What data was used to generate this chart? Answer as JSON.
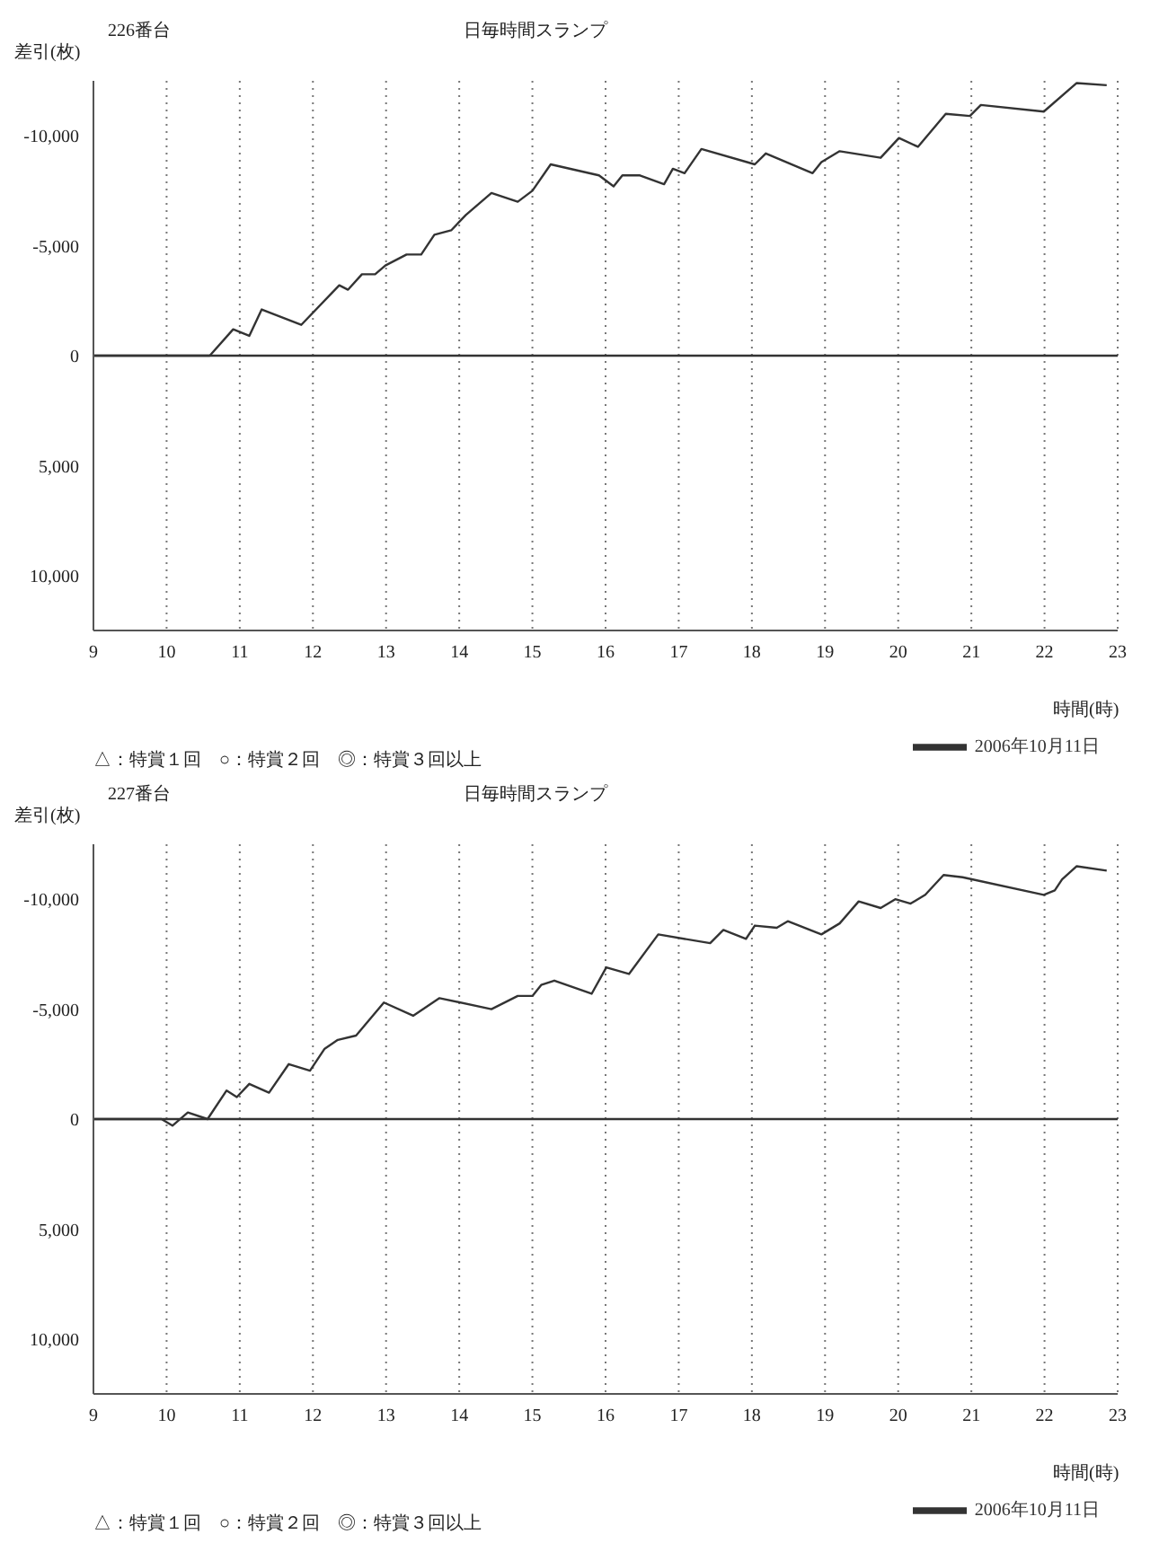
{
  "chart_data": [
    {
      "type": "line",
      "title": "226番台",
      "subtitle": "日毎時間スランプ",
      "xlabel": "時間(時)",
      "ylabel": "差引(枚)",
      "xlim": [
        9,
        23
      ],
      "xticks": [
        9,
        10,
        11,
        12,
        13,
        14,
        15,
        16,
        17,
        18,
        19,
        20,
        21,
        22,
        23
      ],
      "ylim": [
        12500,
        -12500
      ],
      "yticks": [
        {
          "value": -10000,
          "label": "-10,000"
        },
        {
          "value": -5000,
          "label": "-5,000"
        },
        0,
        {
          "value": 5000,
          "label": "5,000"
        },
        {
          "value": 10000,
          "label": "10,000"
        }
      ],
      "grid": "x",
      "legend": "bottom right",
      "marker": "none",
      "line_style": "solid",
      "ref_lines": [
        {
          "axis": "y",
          "value": 0,
          "color": "#333333",
          "line_style": "solid"
        }
      ],
      "annotations": [
        "△：特賞１回　○：特賞２回　◎：特賞３回以上"
      ],
      "x": [
        9,
        10.59,
        10.91,
        11.13,
        11.3,
        11.84,
        12.36,
        12.48,
        12.67,
        12.85,
        12.99,
        13.28,
        13.48,
        13.66,
        13.89,
        14.09,
        14.44,
        14.8,
        15.0,
        15.25,
        15.91,
        16.11,
        16.23,
        16.47,
        16.8,
        16.92,
        17.08,
        17.31,
        18.04,
        18.19,
        18.83,
        18.95,
        19.2,
        19.76,
        20.01,
        20.27,
        20.65,
        20.98,
        21.13,
        21.99,
        22.44,
        22.85
      ],
      "series": [
        {
          "name": "2006年10月11日",
          "color": "#333333",
          "values": [
            0,
            0,
            -1200,
            -900,
            -2100,
            -1400,
            -3200,
            -3000,
            -3700,
            -3700,
            -4100,
            -4600,
            -4600,
            -5500,
            -5700,
            -6400,
            -7400,
            -7000,
            -7500,
            -8700,
            -8200,
            -7700,
            -8200,
            -8200,
            -7800,
            -8500,
            -8300,
            -9400,
            -8700,
            -9200,
            -8300,
            -8800,
            -9300,
            -9000,
            -9900,
            -9500,
            -11000,
            -10900,
            -11400,
            -11100,
            -12400,
            -12300
          ]
        }
      ]
    },
    {
      "type": "line",
      "title": "227番台",
      "subtitle": "日毎時間スランプ",
      "xlabel": "時間(時)",
      "ylabel": "差引(枚)",
      "xlim": [
        9,
        23
      ],
      "xticks": [
        9,
        10,
        11,
        12,
        13,
        14,
        15,
        16,
        17,
        18,
        19,
        20,
        21,
        22,
        23
      ],
      "ylim": [
        12500,
        -12500
      ],
      "yticks": [
        {
          "value": -10000,
          "label": "-10,000"
        },
        {
          "value": -5000,
          "label": "-5,000"
        },
        0,
        {
          "value": 5000,
          "label": "5,000"
        },
        {
          "value": 10000,
          "label": "10,000"
        }
      ],
      "grid": "x",
      "legend": "bottom right",
      "marker": "none",
      "line_style": "solid",
      "ref_lines": [
        {
          "axis": "y",
          "value": 0,
          "color": "#333333",
          "line_style": "solid"
        }
      ],
      "annotations": [
        "△：特賞１回　○：特賞２回　◎：特賞３回以上"
      ],
      "x": [
        9,
        9.93,
        10.08,
        10.29,
        10.56,
        10.82,
        10.96,
        11.13,
        11.4,
        11.67,
        11.96,
        12.16,
        12.34,
        12.59,
        12.97,
        13.37,
        13.73,
        14.44,
        14.8,
        15.0,
        15.12,
        15.3,
        15.81,
        16.01,
        16.32,
        16.72,
        17.43,
        17.61,
        17.92,
        18.04,
        18.34,
        18.49,
        18.95,
        19.2,
        19.46,
        19.76,
        19.96,
        20.17,
        20.37,
        20.62,
        20.88,
        21.99,
        22.14,
        22.24,
        22.44,
        22.85
      ],
      "series": [
        {
          "name": "2006年10月11日",
          "color": "#333333",
          "values": [
            0,
            0,
            300,
            -300,
            0,
            -1300,
            -1000,
            -1600,
            -1200,
            -2500,
            -2200,
            -3200,
            -3600,
            -3800,
            -5300,
            -4700,
            -5500,
            -5000,
            -5600,
            -5600,
            -6100,
            -6300,
            -5700,
            -6900,
            -6600,
            -8400,
            -8000,
            -8600,
            -8200,
            -8800,
            -8700,
            -9000,
            -8400,
            -8900,
            -9900,
            -9600,
            -10000,
            -9800,
            -10200,
            -11100,
            -11000,
            -10200,
            -10400,
            -10900,
            -11500,
            -11300
          ]
        }
      ]
    }
  ]
}
